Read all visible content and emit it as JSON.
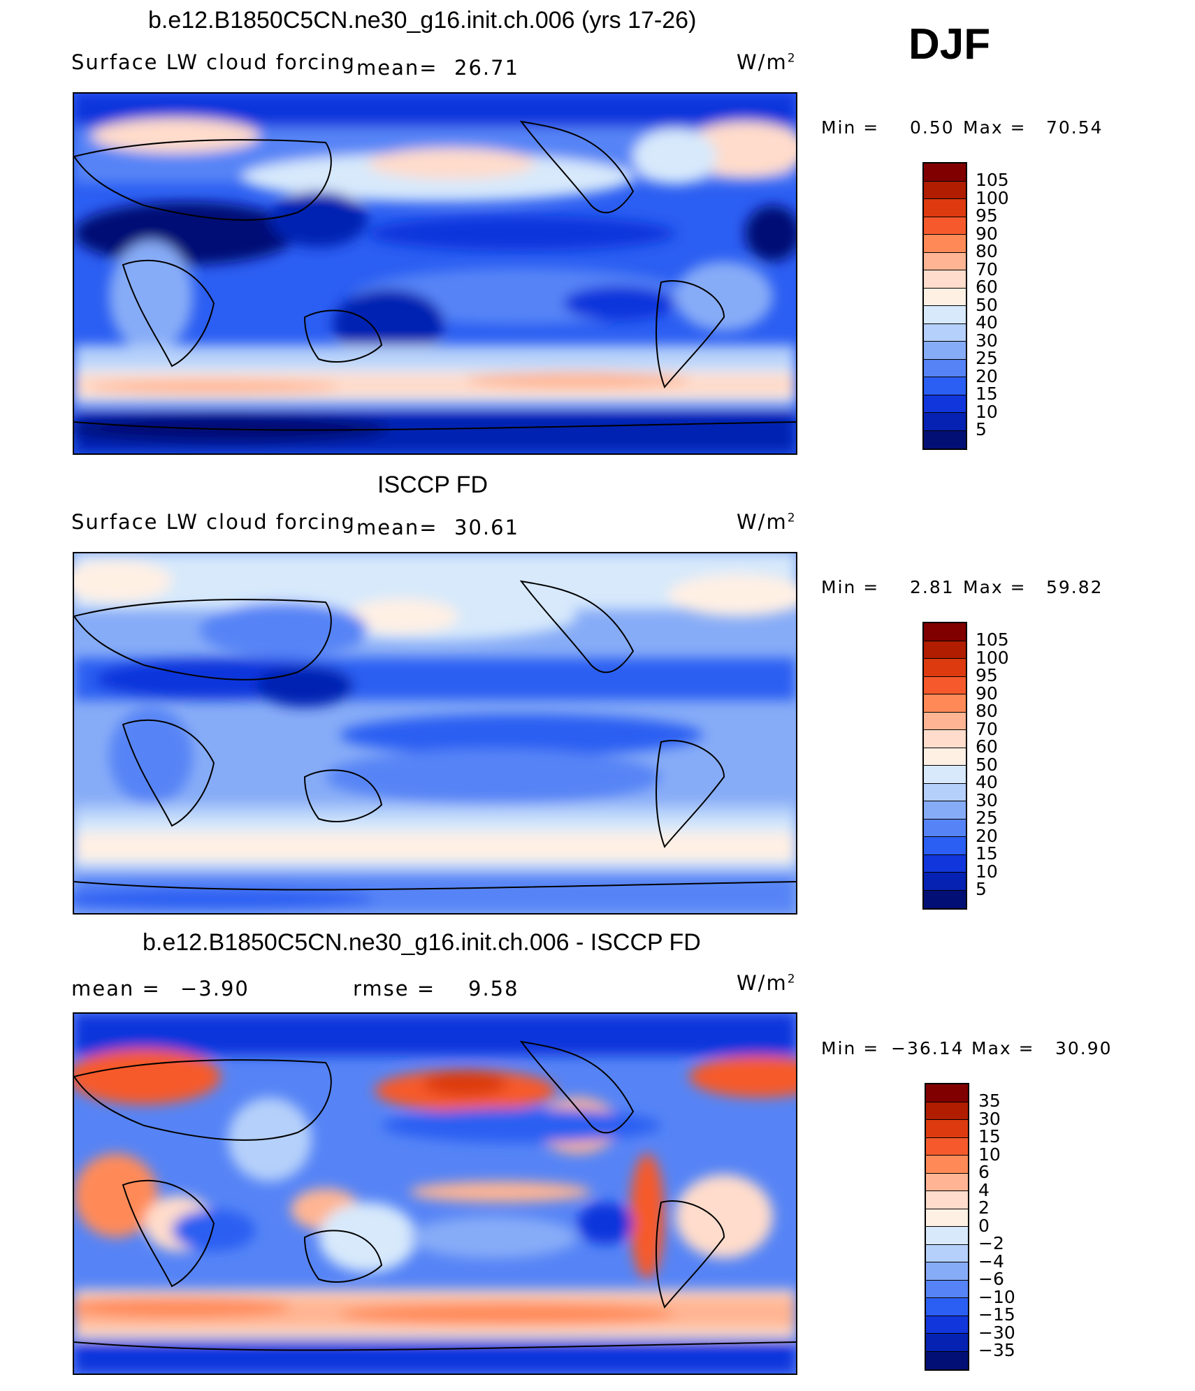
{
  "figure": {
    "season": "DJF",
    "panels": [
      {
        "title": "b.e12.B1850C5CN.ne30_g16.init.ch.006 (yrs 17-26)",
        "variable": "Surface LW cloud forcing",
        "mean_label": "mean=",
        "mean_value": "26.71",
        "units": "W/m",
        "units_exp": "2",
        "min_label": "Min =",
        "min_value": "0.50",
        "max_label": "Max =",
        "max_value": "70.54",
        "colorbar_labels": [
          "105",
          "100",
          "95",
          "90",
          "80",
          "70",
          "60",
          "50",
          "40",
          "30",
          "25",
          "20",
          "15",
          "10",
          "5"
        ],
        "colorbar_colors": [
          "#800000",
          "#b01d00",
          "#dd3a10",
          "#f65a2c",
          "#ff8a58",
          "#ffb593",
          "#ffdccb",
          "#fff0e4",
          "#d7e9fb",
          "#b5d0fa",
          "#87acf7",
          "#5684f6",
          "#2b5ef2",
          "#1136dc",
          "#0522b2",
          "#021075"
        ]
      },
      {
        "title": "ISCCP FD",
        "variable": "Surface LW cloud forcing",
        "mean_label": "mean=",
        "mean_value": "30.61",
        "units": "W/m",
        "units_exp": "2",
        "min_label": "Min =",
        "min_value": "2.81",
        "max_label": "Max =",
        "max_value": "59.82",
        "colorbar_labels": [
          "105",
          "100",
          "95",
          "90",
          "80",
          "70",
          "60",
          "50",
          "40",
          "30",
          "25",
          "20",
          "15",
          "10",
          "5"
        ],
        "colorbar_colors": [
          "#800000",
          "#b01d00",
          "#dd3a10",
          "#f65a2c",
          "#ff8a58",
          "#ffb593",
          "#ffdccb",
          "#fff0e4",
          "#d7e9fb",
          "#b5d0fa",
          "#87acf7",
          "#5684f6",
          "#2b5ef2",
          "#1136dc",
          "#0522b2",
          "#021075"
        ]
      },
      {
        "title": "b.e12.B1850C5CN.ne30_g16.init.ch.006 - ISCCP FD",
        "mean_label": "mean =",
        "mean_value": "−3.90",
        "rmse_label": "rmse =",
        "rmse_value": "9.58",
        "units": "W/m",
        "units_exp": "2",
        "min_label": "Min =",
        "min_value": "−36.14",
        "max_label": "Max =",
        "max_value": "30.90",
        "colorbar_labels": [
          "35",
          "30",
          "15",
          "10",
          "6",
          "4",
          "2",
          "0",
          "−2",
          "−4",
          "−6",
          "−10",
          "−15",
          "−30",
          "−35"
        ],
        "colorbar_colors": [
          "#800000",
          "#b01d00",
          "#dd3a10",
          "#f65a2c",
          "#ff8a58",
          "#ffb593",
          "#ffdccb",
          "#fff0e4",
          "#d7e9fb",
          "#b5d0fa",
          "#87acf7",
          "#5684f6",
          "#2b5ef2",
          "#1136dc",
          "#0522b2",
          "#021075"
        ]
      }
    ]
  }
}
